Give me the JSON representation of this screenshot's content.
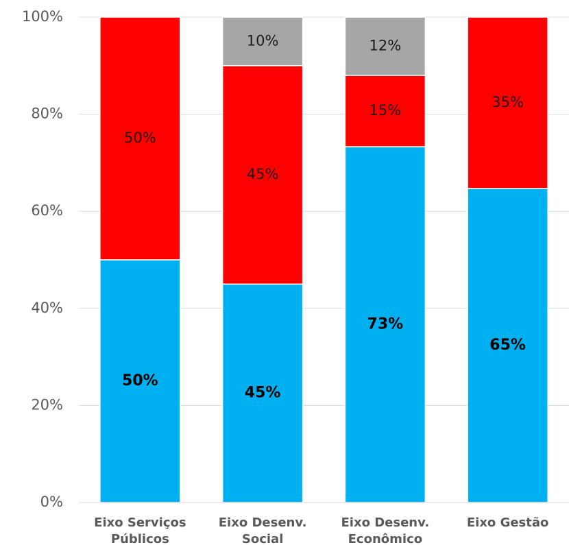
{
  "chart_data": {
    "type": "bar",
    "stacked": true,
    "percent": true,
    "categories": [
      [
        "Eixo Serviços",
        "Públicos"
      ],
      [
        "Eixo Desenv.",
        "Social"
      ],
      [
        "Eixo Desenv.",
        "Econômico"
      ],
      [
        "Eixo Gestão"
      ]
    ],
    "series": [
      {
        "values": [
          50,
          45,
          73.3,
          64.7
        ],
        "labels": [
          "50%",
          "45%",
          "73%",
          "65%"
        ],
        "color": "#00b0f0",
        "label_bold": true
      },
      {
        "values": [
          50,
          45,
          14.7,
          35.3
        ],
        "labels": [
          "50%",
          "45%",
          "15%",
          "35%"
        ],
        "color": "#ff0000",
        "label_bold": false
      },
      {
        "values": [
          0,
          10,
          12,
          0
        ],
        "labels": [
          "",
          "10%",
          "12%",
          ""
        ],
        "color": "#a6a6a6",
        "label_bold": false
      }
    ],
    "ylim": [
      0,
      100
    ],
    "yticks": [
      "0%",
      "20%",
      "40%",
      "60%",
      "80%",
      "100%"
    ],
    "grid": true,
    "legend": "none"
  }
}
